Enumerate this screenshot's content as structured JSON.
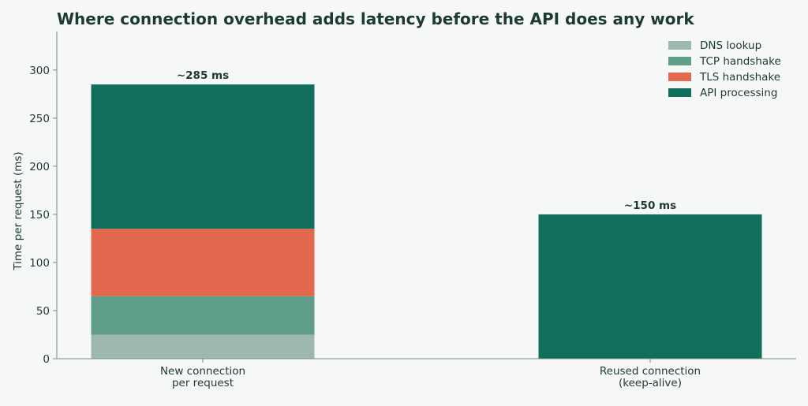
{
  "chart_data": {
    "type": "bar",
    "stacked": true,
    "title": "Where connection overhead adds latency before the API does any work",
    "ylabel": "Time per request (ms)",
    "xlabel": "",
    "ylim": [
      0,
      340
    ],
    "yticks": [
      0,
      50,
      100,
      150,
      200,
      250,
      300
    ],
    "categories": [
      [
        "New connection",
        "per request"
      ],
      [
        "Reused connection",
        "(keep-alive)"
      ]
    ],
    "series": [
      {
        "name": "DNS lookup",
        "values": [
          25,
          0
        ],
        "color": "#9db8b0"
      },
      {
        "name": "TCP handshake",
        "values": [
          40,
          0
        ],
        "color": "#5e9e8b"
      },
      {
        "name": "TLS handshake",
        "values": [
          70,
          0
        ],
        "color": "#e2694d"
      },
      {
        "name": "API processing",
        "values": [
          150,
          150
        ],
        "color": "#126e5c"
      }
    ],
    "total_labels": [
      "~285 ms",
      "~150 ms"
    ],
    "grid": false,
    "legend_position": "top-right"
  }
}
